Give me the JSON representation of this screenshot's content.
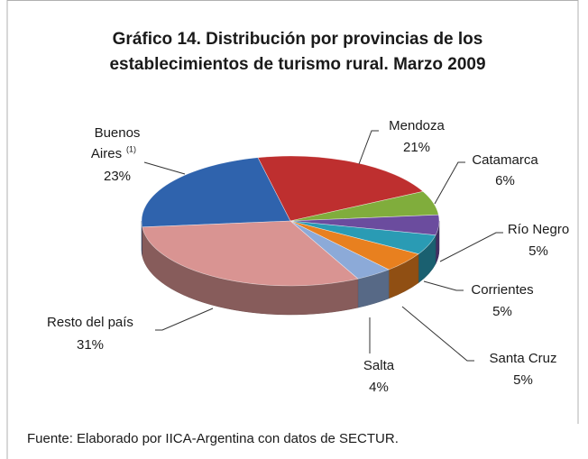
{
  "chart_data": {
    "type": "pie3d",
    "title": [
      "Gráfico 14. Distribución por provincias de los",
      "establecimientos de turismo rural. Marzo 2009"
    ],
    "categories": [
      "Buenos Aires",
      "Mendoza",
      "Catamarca",
      "Río Negro",
      "Corrientes",
      "Santa Cruz",
      "Salta",
      "Resto del país"
    ],
    "category_marks": [
      "(1)",
      null,
      null,
      null,
      null,
      null,
      null,
      null
    ],
    "values": [
      23,
      21,
      6,
      5,
      5,
      5,
      4,
      31
    ],
    "value_labels": [
      "23%",
      "21%",
      "6%",
      "5%",
      "5%",
      "5%",
      "4%",
      "31%"
    ],
    "colors": [
      "#2f63ad",
      "#be2f2f",
      "#80ad3c",
      "#6b4c9e",
      "#2a9bb4",
      "#e8801f",
      "#8caad8",
      "#d99492"
    ],
    "source": "Fuente: Elaborado por IICA-Argentina con datos de SECTUR."
  }
}
